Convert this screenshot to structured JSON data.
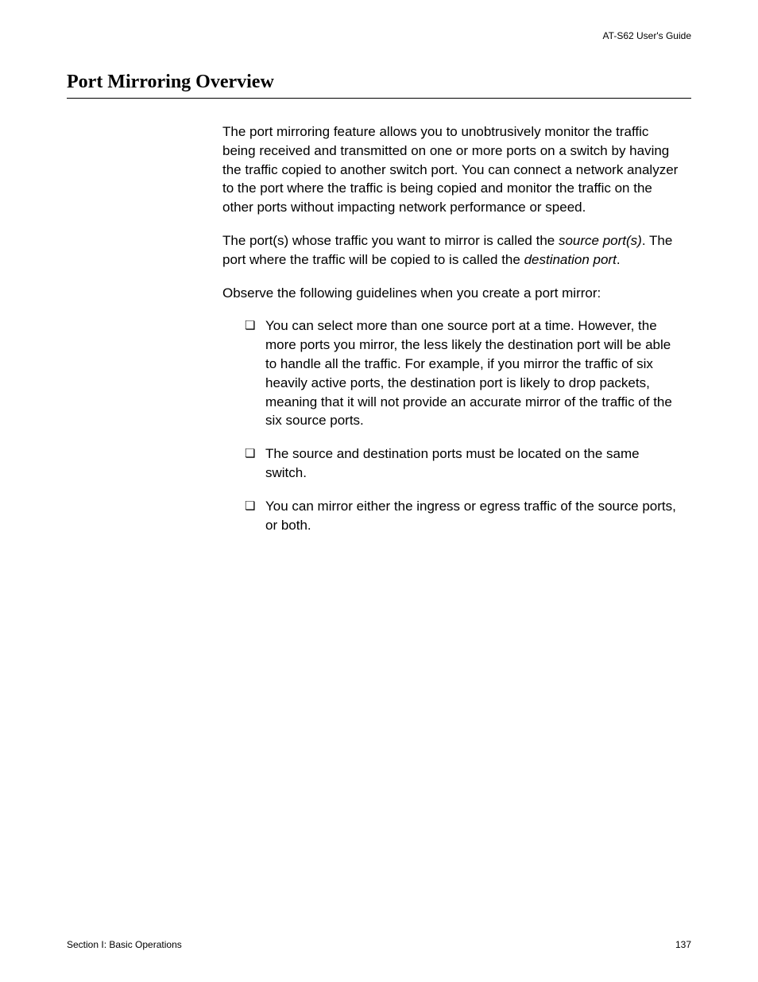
{
  "header": {
    "guide_title": "AT-S62 User's Guide"
  },
  "title": "Port Mirroring Overview",
  "paragraphs": {
    "p1": "The port mirroring feature allows you to unobtrusively monitor the traffic being received and transmitted on one or more ports on a switch by having the traffic copied to another switch port. You can connect a network analyzer to the port where the traffic is being copied and monitor the traffic on the other ports without impacting network performance or speed.",
    "p2_part1": "The port(s) whose traffic you want to mirror is called the ",
    "p2_italic1": "source port(s)",
    "p2_part2": ". The port where the traffic will be copied to is called the ",
    "p2_italic2": "destination port",
    "p2_part3": ".",
    "p3": "Observe the following guidelines when you create a port mirror:"
  },
  "list_items": {
    "item1": "You can select more than one source port at a time. However, the more ports you mirror, the less likely the destination port will be able to handle all the traffic. For example, if you mirror the traffic of six heavily active ports, the destination port is likely to drop packets, meaning that it will not provide an accurate mirror of the traffic of the six source ports.",
    "item2": "The source and destination ports must be located on the same switch.",
    "item3": "You can mirror either the ingress or egress traffic of the source ports, or both."
  },
  "footer": {
    "section": "Section I: Basic Operations",
    "page_number": "137"
  }
}
